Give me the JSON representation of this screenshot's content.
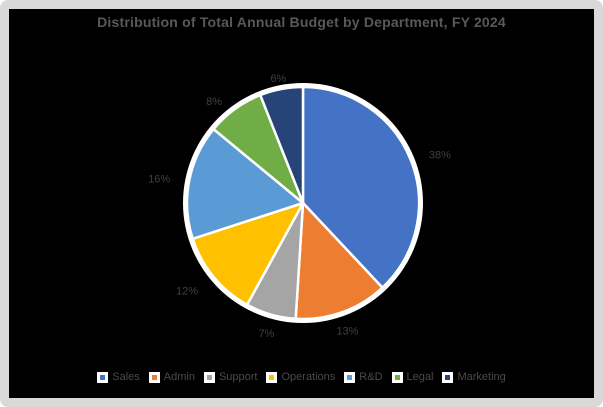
{
  "frame": {
    "border_color": "#D9D9D9",
    "background_color": "#000000"
  },
  "chart_data": {
    "type": "pie",
    "title": "Distribution of Total Annual Budget by Department, FY 2024",
    "categories": [
      "Sales",
      "Admin",
      "Support",
      "Operations",
      "R&D",
      "Legal",
      "Marketing"
    ],
    "values": [
      38,
      13,
      7,
      12,
      16,
      8,
      6
    ],
    "labels": [
      "38%",
      "13%",
      "7%",
      "12%",
      "16%",
      "8%",
      "6%"
    ],
    "colors": [
      "#4472C4",
      "#ED7D31",
      "#A5A5A5",
      "#FFC000",
      "#5B9BD5",
      "#70AD47",
      "#264478"
    ],
    "slice_border_color": "#FFFFFF",
    "start_angle_deg": 0,
    "direction": "clockwise",
    "legend_position": "bottom",
    "title_color": "#595959",
    "data_label_color": "#404040",
    "legend_text_color": "#4A4A4A"
  }
}
